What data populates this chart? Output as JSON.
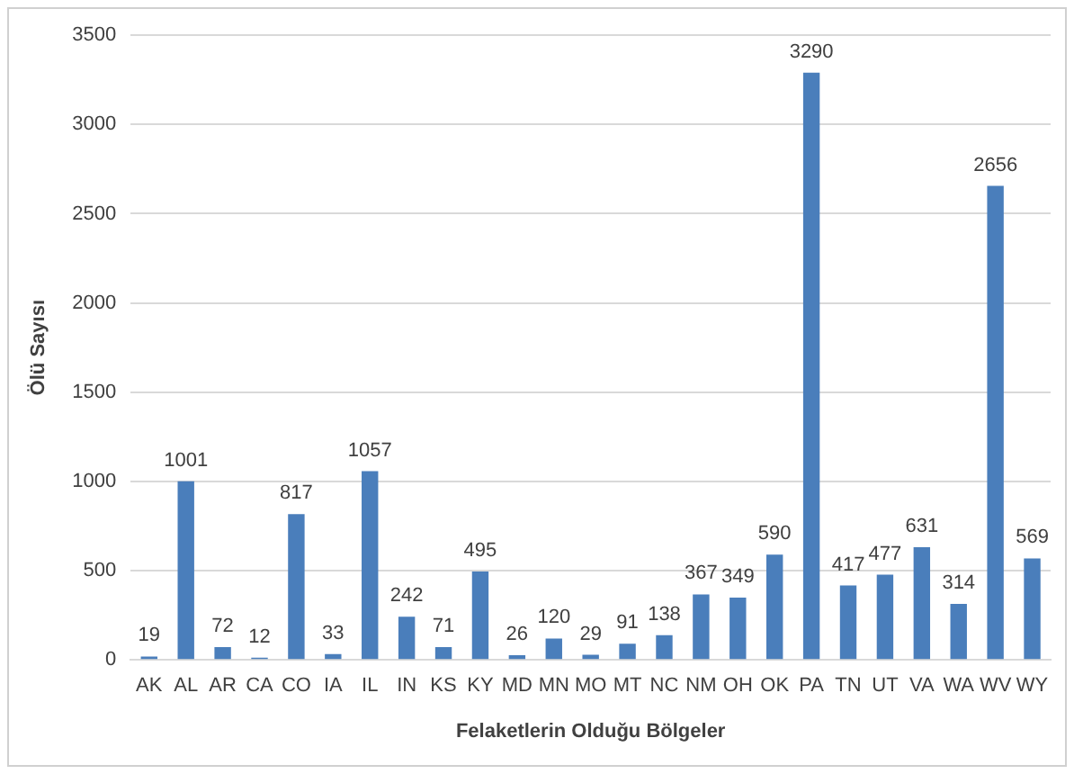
{
  "chart_data": {
    "type": "bar",
    "xlabel": "Felaketlerin Olduğu Bölgeler",
    "ylabel": "Ölü Sayısı",
    "categories": [
      "AK",
      "AL",
      "AR",
      "CA",
      "CO",
      "IA",
      "IL",
      "IN",
      "KS",
      "KY",
      "MD",
      "MN",
      "MO",
      "MT",
      "NC",
      "NM",
      "OH",
      "OK",
      "PA",
      "TN",
      "UT",
      "VA",
      "WA",
      "WV",
      "WY"
    ],
    "values": [
      19,
      1001,
      72,
      12,
      817,
      33,
      1057,
      242,
      71,
      495,
      26,
      120,
      29,
      91,
      138,
      367,
      349,
      590,
      3290,
      417,
      477,
      631,
      314,
      2656,
      569
    ],
    "color": "#4a7ebb",
    "ylim": [
      0,
      3500
    ],
    "yticks": [
      0,
      500,
      1000,
      1500,
      2000,
      2500,
      3000,
      3500
    ],
    "grid": "y",
    "data_labels": true,
    "legend": false
  }
}
